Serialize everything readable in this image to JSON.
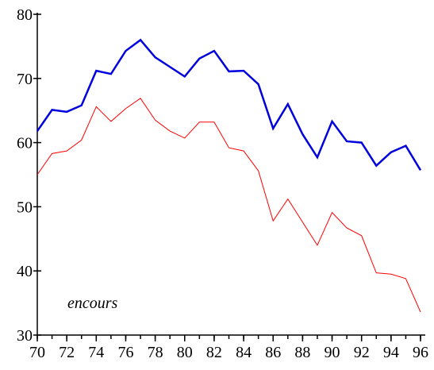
{
  "chart_data": {
    "type": "line",
    "annotation": "encours",
    "x": [
      70,
      71,
      72,
      73,
      74,
      75,
      76,
      77,
      78,
      79,
      80,
      81,
      82,
      83,
      84,
      85,
      86,
      87,
      88,
      89,
      90,
      91,
      92,
      93,
      94,
      95,
      96
    ],
    "series": [
      {
        "color": "#0000dd",
        "values": [
          61.8,
          65.1,
          64.8,
          65.8,
          71.2,
          70.7,
          74.3,
          76.0,
          73.3,
          71.8,
          70.3,
          73.1,
          74.3,
          71.1,
          71.2,
          69.1,
          62.2,
          66.0,
          61.3,
          57.7,
          63.3,
          60.2,
          60.0,
          56.4,
          58.5,
          59.5,
          55.7
        ]
      },
      {
        "color": "#ff0000",
        "values": [
          55.0,
          58.3,
          58.7,
          60.4,
          65.6,
          63.3,
          65.3,
          66.9,
          63.5,
          61.8,
          60.7,
          63.2,
          63.2,
          59.2,
          58.7,
          55.6,
          47.8,
          51.2,
          47.6,
          44.0,
          49.1,
          46.7,
          45.5,
          39.7,
          39.5,
          38.8,
          33.6
        ]
      }
    ],
    "xlim": [
      70,
      96
    ],
    "xticks": [
      70,
      72,
      74,
      76,
      78,
      80,
      82,
      84,
      86,
      88,
      90,
      92,
      94,
      96
    ],
    "ylim": [
      30,
      80
    ],
    "yticks": [
      30,
      40,
      50,
      60,
      70,
      80
    ]
  }
}
